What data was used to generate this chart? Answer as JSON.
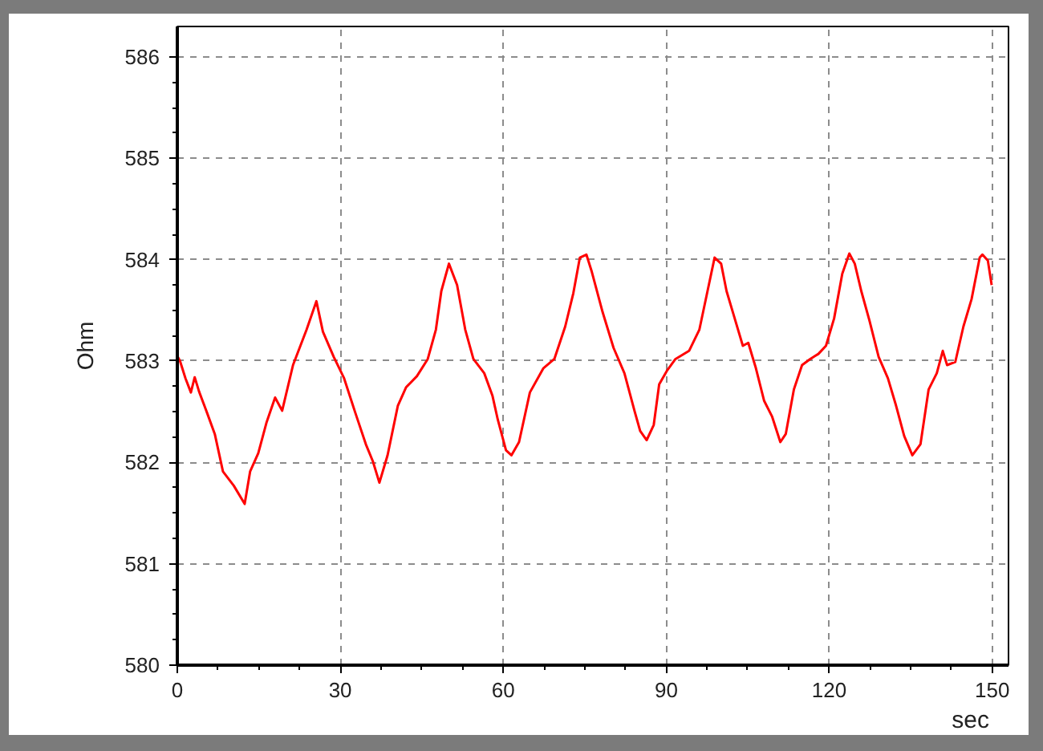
{
  "chart_data": {
    "type": "line",
    "xlabel": "sec",
    "ylabel": "Ohm",
    "x": [
      0,
      0.5,
      1.5,
      2.5,
      3.2,
      4.0,
      5.4,
      6.9,
      8.4,
      10.4,
      12.4,
      13.4,
      14.9,
      16.4,
      18.0,
      19.3,
      21.3,
      23.8,
      25.6,
      26.8,
      28.8,
      30.7,
      32.7,
      34.7,
      36.0,
      37.2,
      38.7,
      40.6,
      42.1,
      44.1,
      46.1,
      47.6,
      48.6,
      50.0,
      51.5,
      53.0,
      54.5,
      56.5,
      58.0,
      59.0,
      60.5,
      61.5,
      62.9,
      64.9,
      67.4,
      69.4,
      71.4,
      72.9,
      74.1,
      75.3,
      76.3,
      78.3,
      80.3,
      82.3,
      84.2,
      85.2,
      86.4,
      87.7,
      88.7,
      90.2,
      91.7,
      94.2,
      96.1,
      97.6,
      98.9,
      100.1,
      101.1,
      102.6,
      104.1,
      105.1,
      106.5,
      108.0,
      109.5,
      111.0,
      112.0,
      113.5,
      115.0,
      116.5,
      118.0,
      119.4,
      120.9,
      122.4,
      123.7,
      124.7,
      125.9,
      127.4,
      129.1,
      130.8,
      132.3,
      133.8,
      135.3,
      136.8,
      138.3,
      139.8,
      140.9,
      141.7,
      143.2,
      144.7,
      146.2,
      147.7,
      148.2,
      149.2,
      149.9
    ],
    "series": [
      {
        "color": "#ff0000",
        "values": [
          583.05,
          583.0,
          582.83,
          582.69,
          582.84,
          582.7,
          582.5,
          582.28,
          581.91,
          581.77,
          581.59,
          581.91,
          582.09,
          582.39,
          582.64,
          582.51,
          582.96,
          583.31,
          583.59,
          583.29,
          583.04,
          582.83,
          582.5,
          582.18,
          582.01,
          581.8,
          582.07,
          582.56,
          582.74,
          582.85,
          583.02,
          583.31,
          583.69,
          583.96,
          583.75,
          583.31,
          583.02,
          582.88,
          582.66,
          582.42,
          582.12,
          582.07,
          582.2,
          582.69,
          582.93,
          583.02,
          583.34,
          583.67,
          584.02,
          584.05,
          583.88,
          583.48,
          583.13,
          582.88,
          582.5,
          582.31,
          582.22,
          582.37,
          582.77,
          582.91,
          583.02,
          583.1,
          583.31,
          583.69,
          584.02,
          583.96,
          583.69,
          583.42,
          583.15,
          583.18,
          582.93,
          582.61,
          582.45,
          582.2,
          582.28,
          582.72,
          582.96,
          583.02,
          583.07,
          583.15,
          583.42,
          583.86,
          584.06,
          583.96,
          583.69,
          583.4,
          583.04,
          582.83,
          582.56,
          582.26,
          582.07,
          582.18,
          582.72,
          582.88,
          583.1,
          582.96,
          582.99,
          583.34,
          583.61,
          584.02,
          584.05,
          583.99,
          583.75
        ]
      }
    ],
    "xlim": [
      0,
      153
    ],
    "ylim": [
      580,
      586.3
    ],
    "xticks": [
      0,
      30,
      60,
      90,
      120,
      150
    ],
    "yticks": [
      580,
      581,
      582,
      583,
      584,
      585,
      586
    ],
    "grid": true
  }
}
